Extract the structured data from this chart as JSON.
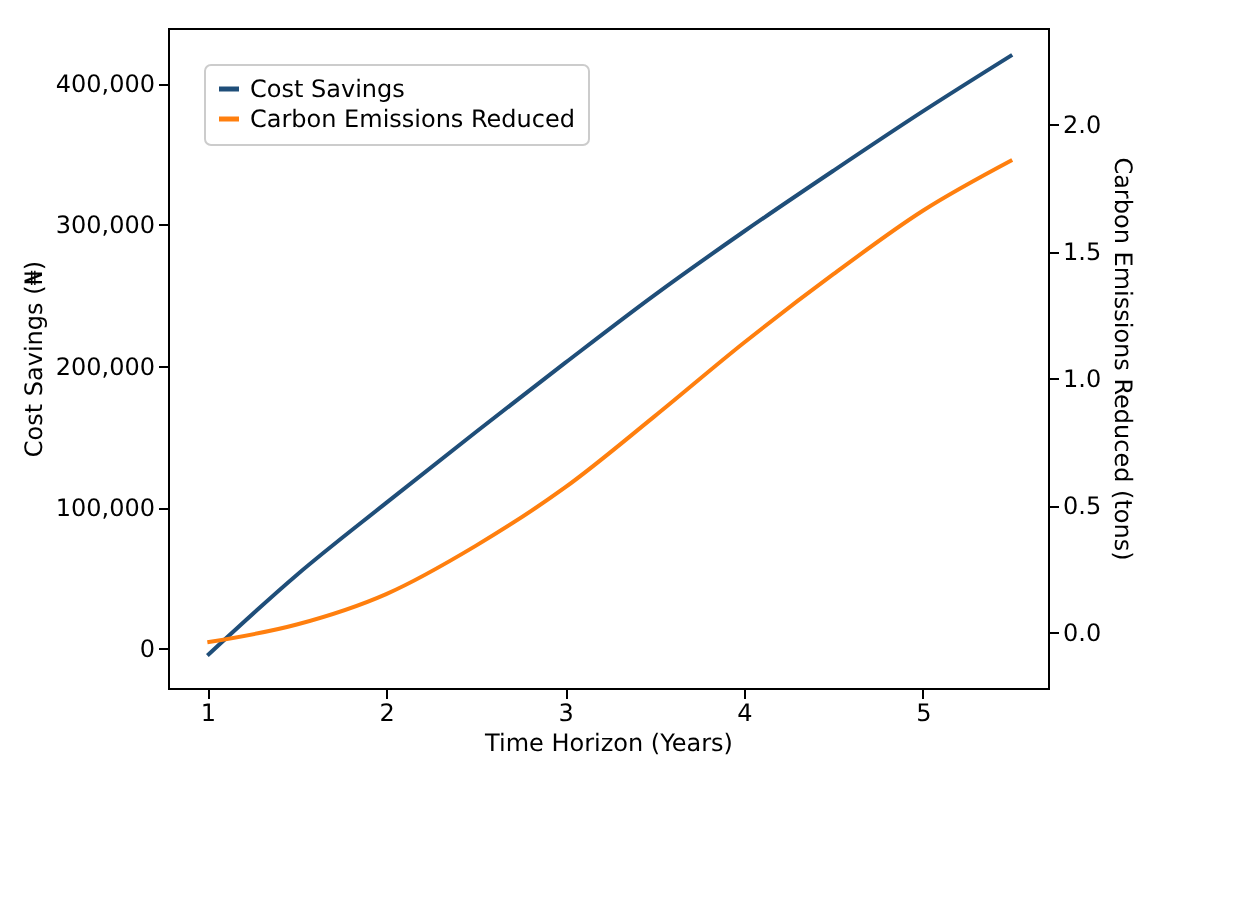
{
  "chart_data": {
    "type": "line",
    "xlabel": "Time Horizon (Years)",
    "ylabel": "Cost Savings (₦)",
    "y2label": "Carbon Emissions Reduced (tons)",
    "x": [
      1,
      1.5,
      2,
      2.5,
      3,
      3.5,
      4,
      4.5,
      5,
      5.5
    ],
    "series": [
      {
        "name": "Cost Savings",
        "color": "#1f4e79",
        "values": [
          -5000,
          52000,
          103000,
          153000,
          202000,
          250000,
          295000,
          338000,
          380000,
          420000
        ]
      },
      {
        "name": "Carbon Emissions Reduced",
        "color": "#ff7f0e",
        "axis": "y2",
        "values": [
          -0.04,
          0.03,
          0.15,
          0.34,
          0.57,
          0.85,
          1.14,
          1.41,
          1.66,
          1.86
        ]
      }
    ],
    "xlim": [
      0.78,
      5.7
    ],
    "xticks": [
      1,
      2,
      3,
      4,
      5
    ],
    "ylim": [
      -28000,
      439000
    ],
    "yticks": [
      0,
      {
        "value": 100000,
        "label": "100,000"
      },
      {
        "value": 200000,
        "label": "200,000"
      },
      {
        "value": 300000,
        "label": "300,000"
      },
      {
        "value": 400000,
        "label": "400,000"
      }
    ],
    "y2lim": [
      -0.22,
      2.38
    ],
    "y2ticks": [
      {
        "value": 0,
        "label": "0.0"
      },
      0.5,
      {
        "value": 1,
        "label": "1.0"
      },
      1.5,
      {
        "value": 2,
        "label": "2.0"
      }
    ],
    "legend": "top left",
    "grid": false,
    "marker": "none",
    "line_style": "solid"
  }
}
